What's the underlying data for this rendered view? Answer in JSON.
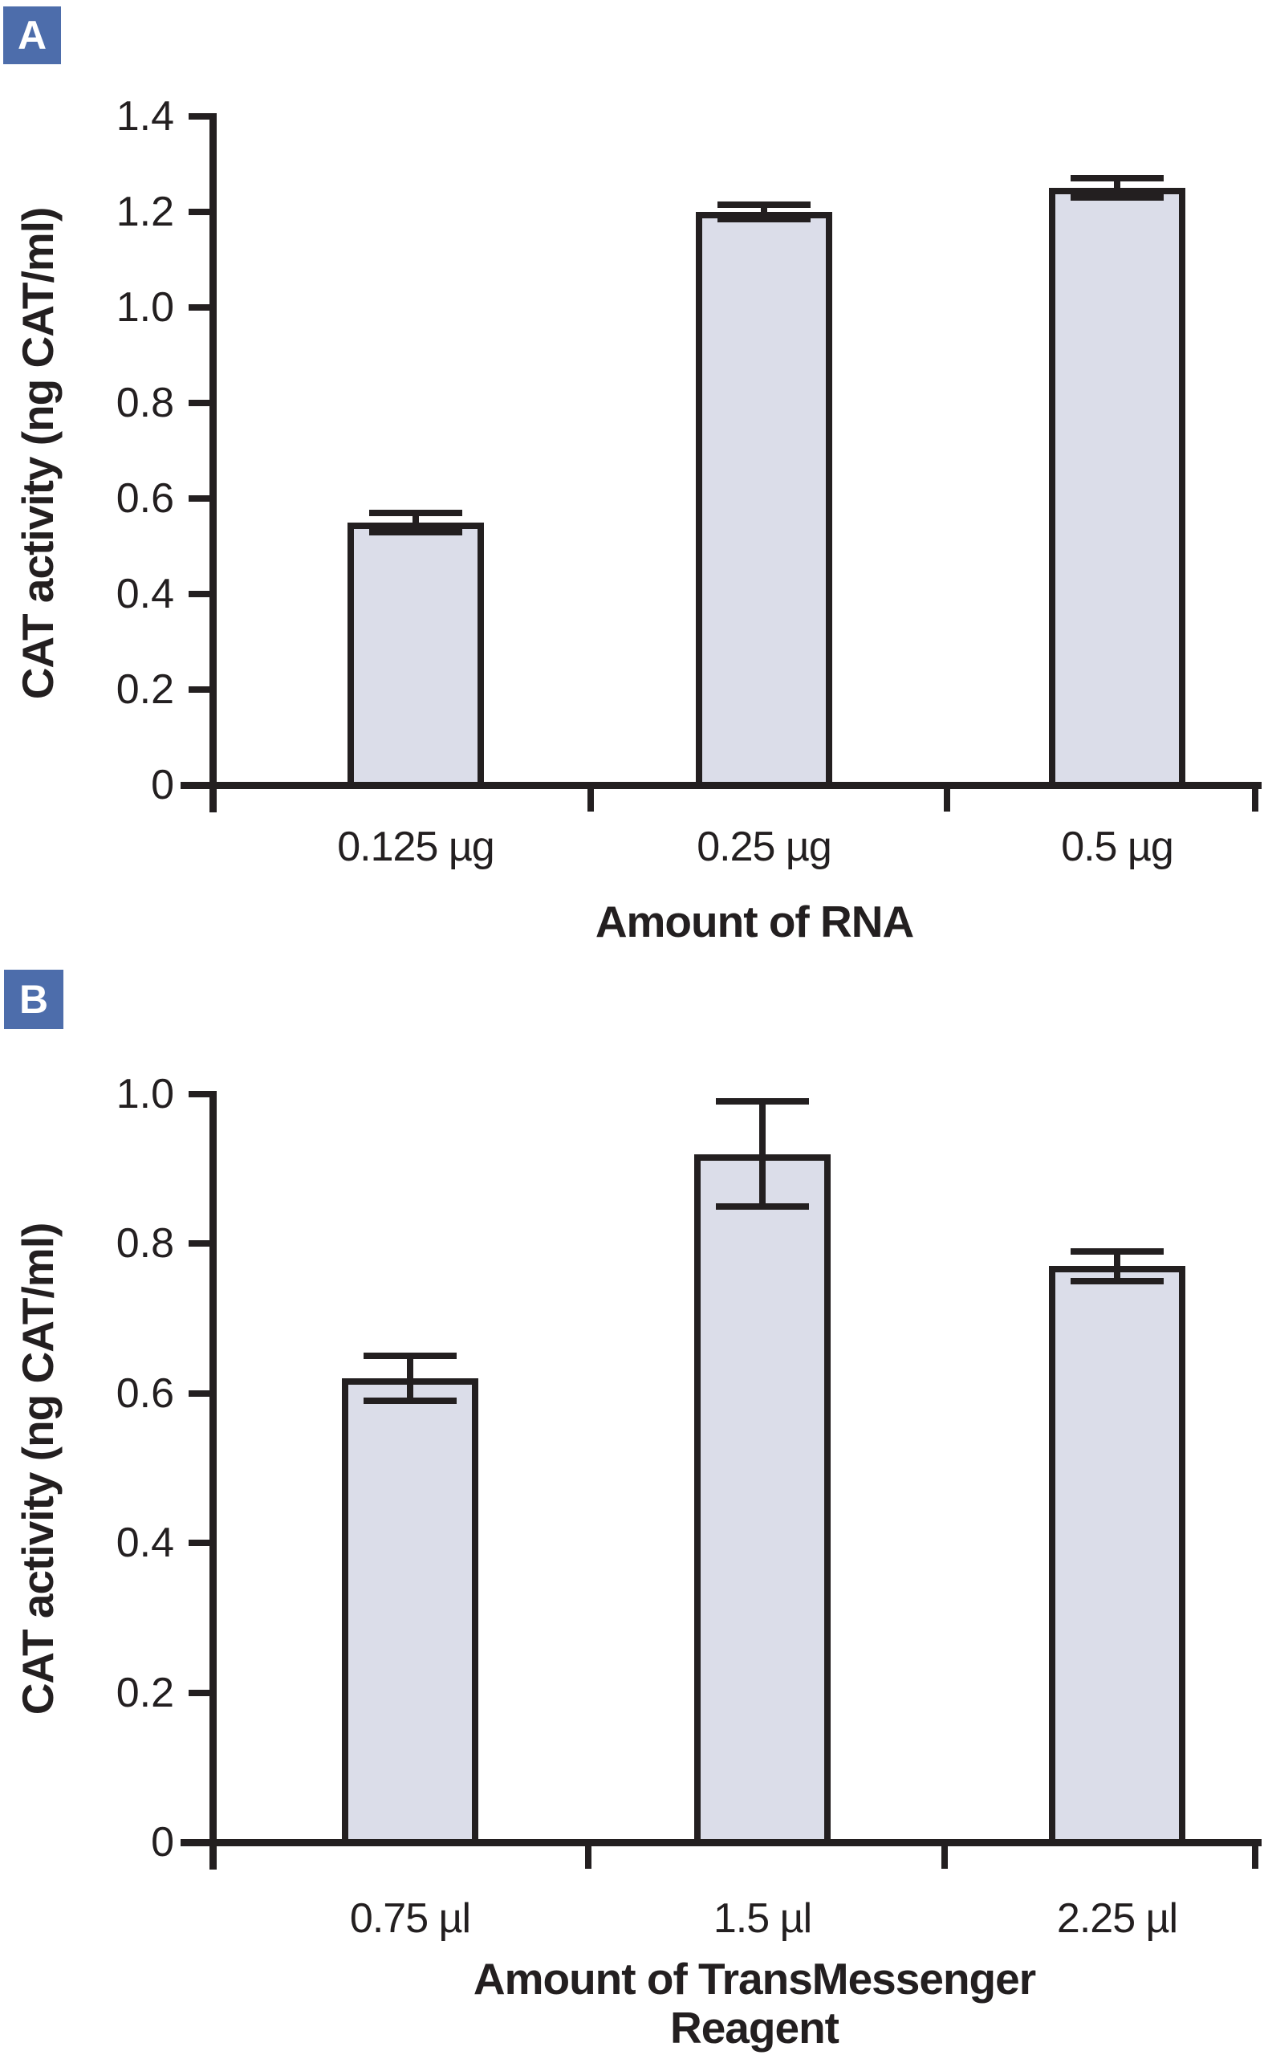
{
  "colors": {
    "badge_bg": "#4d6dab",
    "badge_text": "#ffffff",
    "bar_fill": "#dbdde9",
    "ink": "#231f20",
    "background": "#ffffff"
  },
  "chart_data": [
    {
      "type": "bar",
      "panel_label": "A",
      "title": "",
      "ylabel": "CAT activity (ng CAT/ml)",
      "xlabel_lines": [
        "Amount of RNA"
      ],
      "categories": [
        "0.125 µg",
        "0.25 µg",
        "0.5 µg"
      ],
      "values": [
        0.55,
        1.2,
        1.25
      ],
      "errors": [
        0.02,
        0.015,
        0.02
      ],
      "ytick_labels": [
        "1.4",
        "1.2",
        "1.0",
        "0.8",
        "0.6",
        "0.4",
        "0.2",
        "0"
      ],
      "ylim": [
        0,
        1.4
      ],
      "grid": false,
      "legend": "none",
      "bar_color": "#dbdde9",
      "error_bars": true
    },
    {
      "type": "bar",
      "panel_label": "B",
      "title": "",
      "ylabel": "CAT activity (ng CAT/ml)",
      "xlabel_lines": [
        "Amount of TransMessenger",
        "Reagent"
      ],
      "categories": [
        "0.75 µl",
        "1.5 µl",
        "2.25 µl"
      ],
      "values": [
        0.62,
        0.92,
        0.77
      ],
      "errors": [
        0.03,
        0.07,
        0.02
      ],
      "ytick_labels": [
        "1.0",
        "0.8",
        "0.6",
        "0.4",
        "0.2",
        "0"
      ],
      "ylim": [
        0,
        1.0
      ],
      "grid": false,
      "legend": "none",
      "bar_color": "#dbdde9",
      "error_bars": true
    }
  ]
}
